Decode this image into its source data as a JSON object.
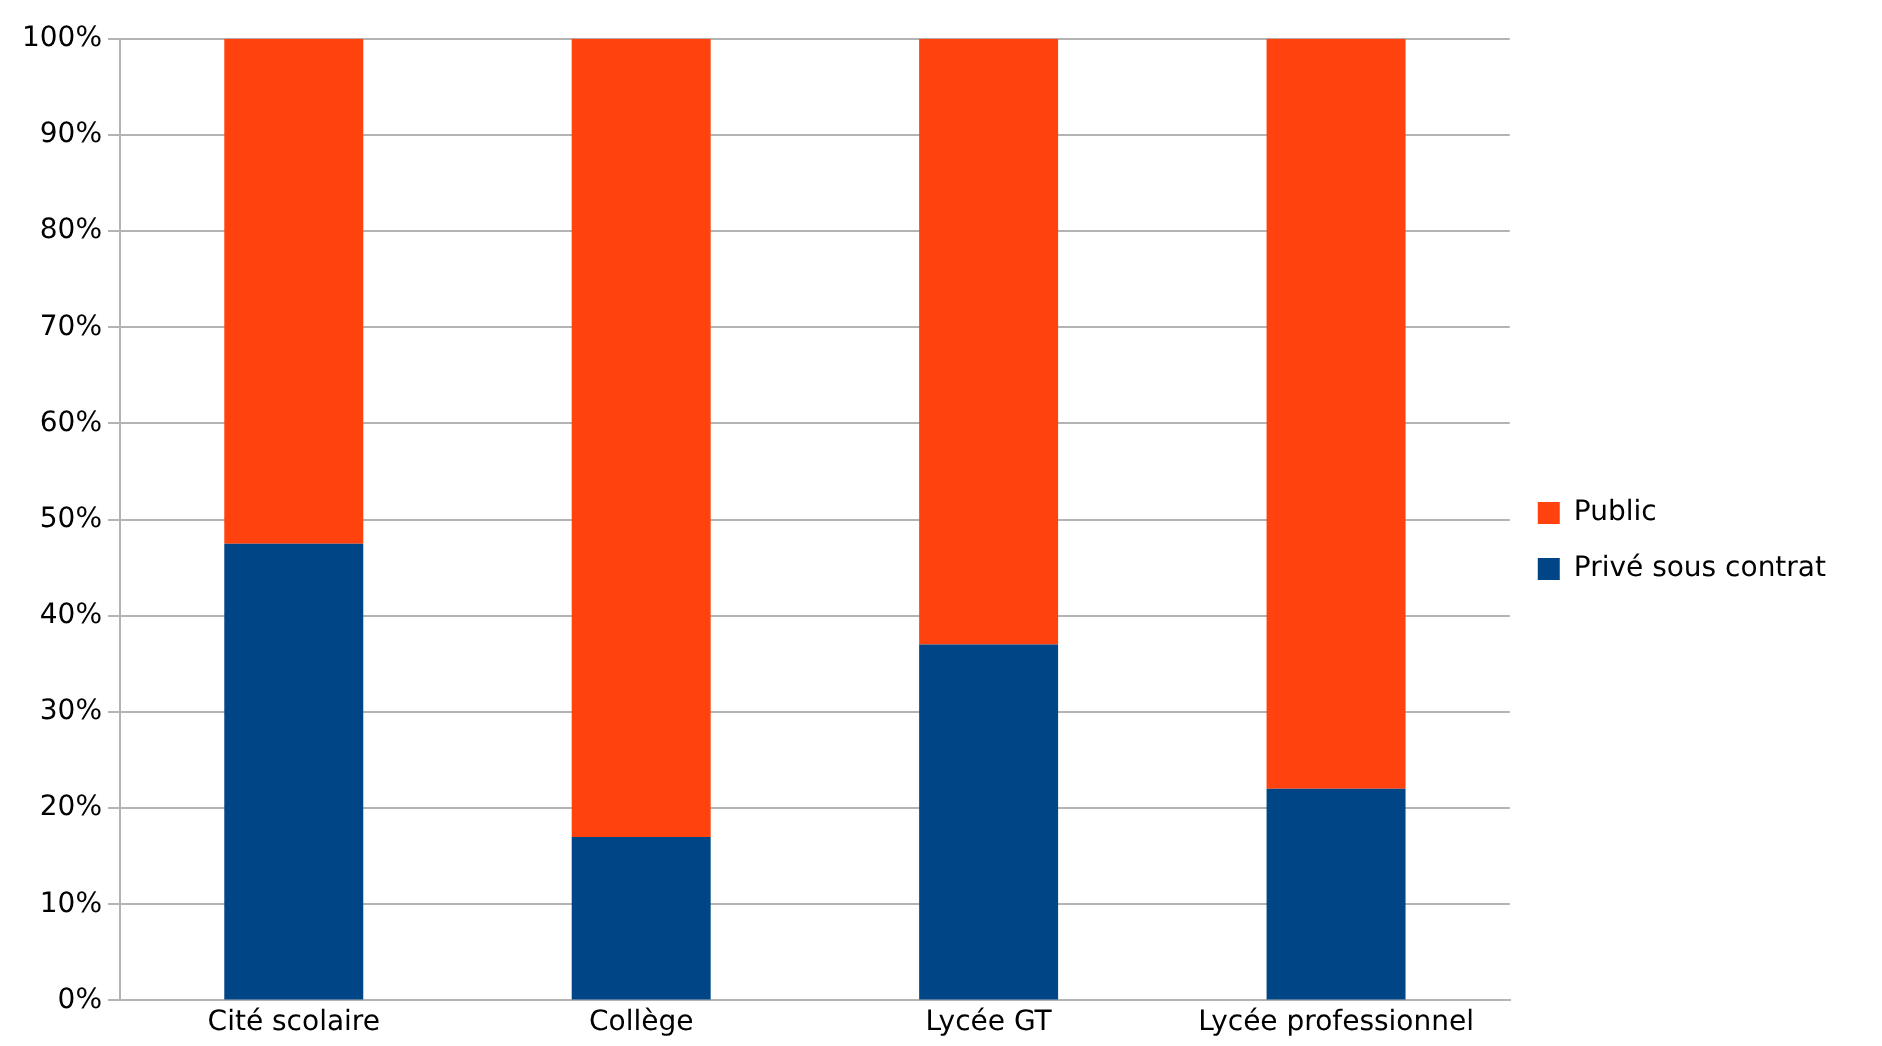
{
  "chart_data": {
    "type": "bar",
    "stacked": true,
    "categories": [
      "Cité scolaire",
      "Collège",
      "Lycée GT",
      "Lycée professionnel"
    ],
    "series": [
      {
        "name": "Privé sous contrat",
        "color": "#004586",
        "values": [
          47.5,
          17,
          37,
          22
        ]
      },
      {
        "name": "Public",
        "color": "#ff420e",
        "values": [
          52.5,
          83,
          63,
          78
        ]
      }
    ],
    "ylim": [
      0,
      100
    ],
    "yticks": [
      {
        "value": 0,
        "label": "0%"
      },
      {
        "value": 10,
        "label": "10%"
      },
      {
        "value": 20,
        "label": "20%"
      },
      {
        "value": 30,
        "label": "30%"
      },
      {
        "value": 40,
        "label": "40%"
      },
      {
        "value": 50,
        "label": "50%"
      },
      {
        "value": 60,
        "label": "60%"
      },
      {
        "value": 70,
        "label": "70%"
      },
      {
        "value": 80,
        "label": "80%"
      },
      {
        "value": 90,
        "label": "90%"
      },
      {
        "value": 100,
        "label": "100%"
      }
    ],
    "grid": "y",
    "legend": "right"
  }
}
